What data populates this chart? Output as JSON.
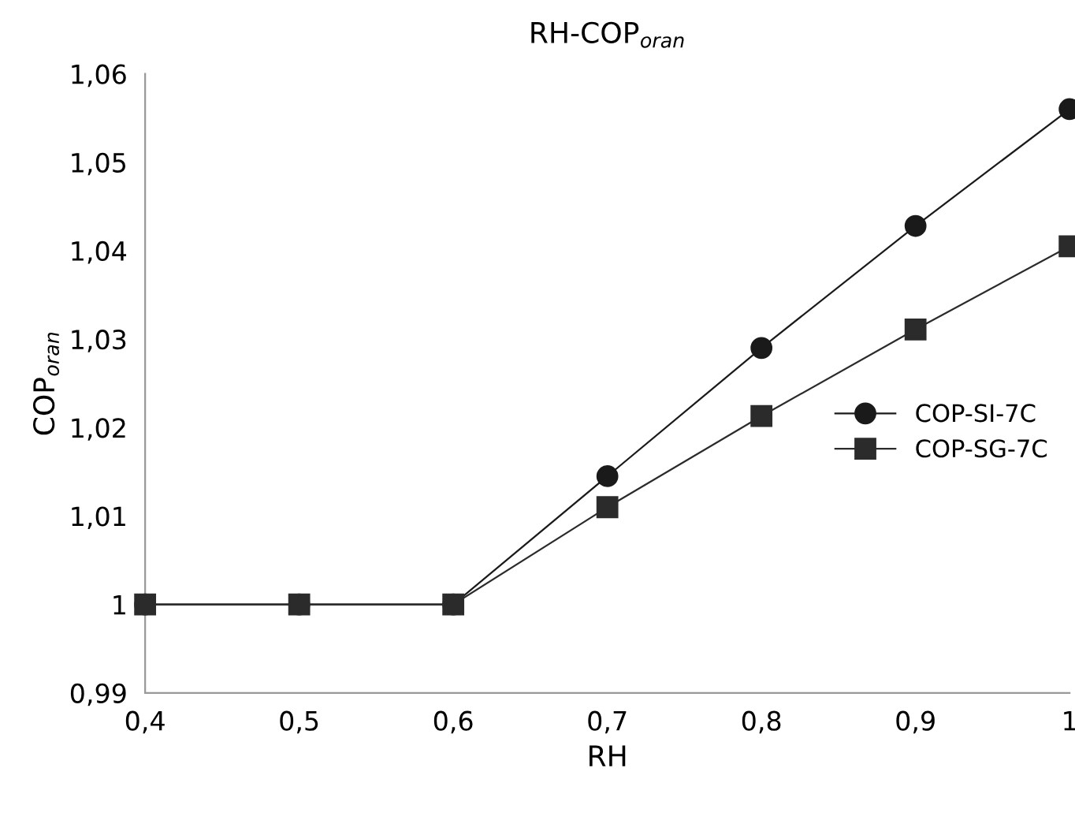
{
  "chart_data": {
    "type": "line",
    "title": "RH-COP$_{oran}$",
    "xlabel": "RH",
    "ylabel": "COP$_{oran}$",
    "x": [
      0.4,
      0.5,
      0.6,
      0.7,
      0.8,
      0.9,
      1.0
    ],
    "series": [
      {
        "name": "COP-SI-7C",
        "color": "#1a1a1a",
        "marker": "circle",
        "values": [
          1.0,
          1.0,
          1.0,
          1.0145,
          1.029,
          1.0428,
          1.056
        ]
      },
      {
        "name": "COP-SG-7C",
        "color": "#2b2b2b",
        "marker": "square",
        "values": [
          1.0,
          1.0,
          1.0,
          1.011,
          1.0213,
          1.0311,
          1.0405
        ]
      }
    ],
    "xlim": [
      0.4,
      1.0
    ],
    "xticks": [
      {
        "value": 0.4,
        "label": "0,4"
      },
      {
        "value": 0.5,
        "label": "0,5"
      },
      {
        "value": 0.6,
        "label": "0,6"
      },
      {
        "value": 0.7,
        "label": "0,7"
      },
      {
        "value": 0.8,
        "label": "0,8"
      },
      {
        "value": 0.9,
        "label": "0,9"
      },
      {
        "value": 1.0,
        "label": "1"
      }
    ],
    "ylim": [
      0.99,
      1.06
    ],
    "yticks": [
      {
        "value": 0.99,
        "label": "0,99"
      },
      {
        "value": 1.0,
        "label": "1"
      },
      {
        "value": 1.01,
        "label": "1,01"
      },
      {
        "value": 1.02,
        "label": "1,02"
      },
      {
        "value": 1.03,
        "label": "1,03"
      },
      {
        "value": 1.04,
        "label": "1,04"
      },
      {
        "value": 1.05,
        "label": "1,05"
      },
      {
        "value": 1.06,
        "label": "1,06"
      }
    ],
    "grid": false,
    "legend": "right",
    "line_style": "solid"
  }
}
